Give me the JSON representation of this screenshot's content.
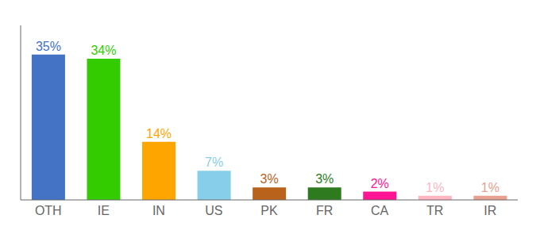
{
  "chart_data": {
    "type": "bar",
    "categories": [
      "OTH",
      "IE",
      "IN",
      "US",
      "PK",
      "FR",
      "CA",
      "TR",
      "IR"
    ],
    "values": [
      35,
      34,
      14,
      7,
      3,
      3,
      2,
      1,
      1
    ],
    "value_labels": [
      "35%",
      "34%",
      "14%",
      "7%",
      "3%",
      "3%",
      "2%",
      "1%",
      "1%"
    ],
    "colors": [
      "#4472C4",
      "#33CC00",
      "#FFA500",
      "#87CEEB",
      "#B8621B",
      "#2D7A1F",
      "#FF1493",
      "#FFB6C1",
      "#E8A090"
    ],
    "ylim": [
      0,
      42
    ],
    "data_labels": true,
    "tick_labels": "x",
    "grid": false
  }
}
